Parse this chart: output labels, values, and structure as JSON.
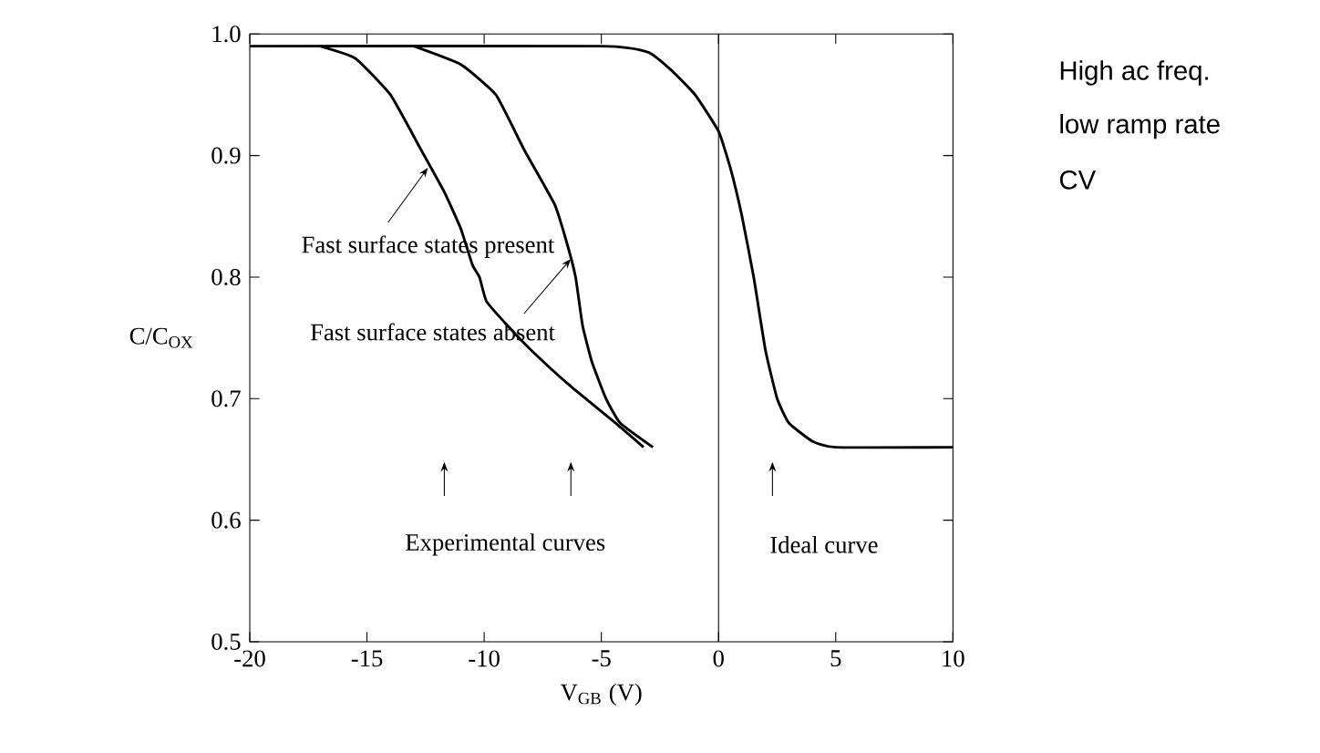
{
  "chart_data": {
    "type": "line",
    "xlabel": "V$_{GB}$ (V)",
    "ylabel": "C/C$_{OX}$",
    "xlim": [
      -20,
      10
    ],
    "xticks": [
      -20,
      -15,
      -10,
      -5,
      0,
      5,
      10
    ],
    "ylim": [
      0.5,
      1.0
    ],
    "yticks": [
      {
        "value": 0.5,
        "label": "0.5"
      },
      {
        "value": 0.6,
        "label": "0.6"
      },
      {
        "value": 0.7,
        "label": "0.7"
      },
      {
        "value": 0.8,
        "label": "0.8"
      },
      {
        "value": 0.9,
        "label": "0.9"
      },
      {
        "value": 1.0,
        "label": "1.0"
      }
    ],
    "grid": false,
    "marker": "none",
    "line_style": "solid",
    "series": [
      {
        "color": "#000000",
        "x": [
          -17,
          -15.5,
          -14,
          -12.7,
          -11.7,
          -11,
          -10.5,
          -10.2,
          -9.9,
          -9,
          -8,
          -6.3,
          -4.4,
          -3.2
        ],
        "values": [
          0.99,
          0.98,
          0.95,
          0.905,
          0.87,
          0.84,
          0.81,
          0.8,
          0.78,
          0.76,
          0.74,
          0.71,
          0.68,
          0.66
        ]
      },
      {
        "color": "#000000",
        "x": [
          -13,
          -11,
          -9.5,
          -8.3,
          -7,
          -6.5,
          -6.1,
          -5.8,
          -5.4,
          -4.8,
          -4.2,
          -2.8
        ],
        "values": [
          0.99,
          0.975,
          0.95,
          0.905,
          0.86,
          0.83,
          0.8,
          0.76,
          0.73,
          0.7,
          0.68,
          0.66
        ]
      },
      {
        "color": "#000000",
        "x": [
          -20,
          -5,
          -3,
          -2,
          -1,
          0,
          0.5,
          1,
          1.5,
          2,
          2.5,
          3,
          4,
          5,
          10
        ],
        "values": [
          0.99,
          0.99,
          0.985,
          0.97,
          0.95,
          0.92,
          0.89,
          0.85,
          0.8,
          0.74,
          0.7,
          0.68,
          0.665,
          0.66,
          0.66
        ]
      }
    ],
    "ref_lines": [
      {
        "axis": "x",
        "value": 0,
        "color": "#000000"
      }
    ],
    "annotations": [
      {
        "text": "Fast surface states present",
        "x": -12.4,
        "y": 0.89
      },
      {
        "text": "Fast surface states absent",
        "x": -6.3,
        "y": 0.815
      },
      "Experimental curves",
      "Ideal curve",
      "High ac freq.",
      "low ramp rate",
      "CV"
    ]
  }
}
